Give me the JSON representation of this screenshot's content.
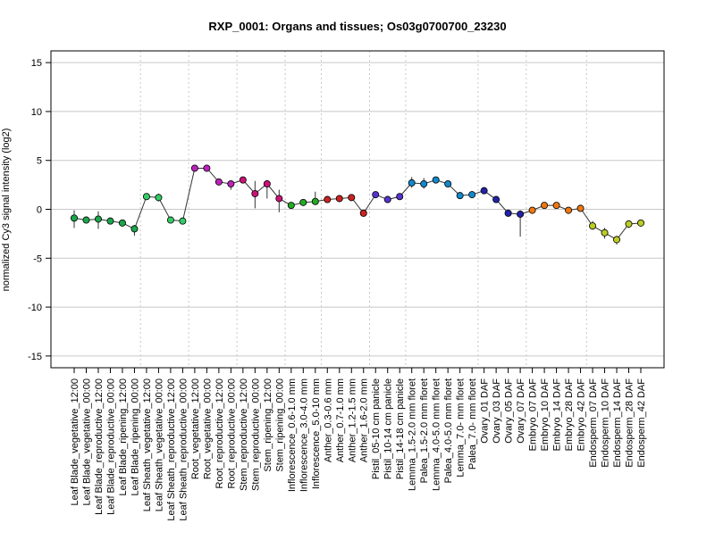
{
  "chart_data": {
    "type": "line",
    "title": "RXP_0001: Organs and tissues; Os03g0700700_23230",
    "xlabel": "",
    "ylabel": "normalized Cy3 signal intensity (log2)",
    "ylim": [
      -16.2,
      16.2
    ],
    "yticks": [
      -15,
      -10,
      -5,
      0,
      5,
      10,
      15
    ],
    "ytick_labels": [
      "-15",
      "-10",
      "-5",
      "0",
      "5",
      "10",
      "15"
    ],
    "grid": {
      "horizontal": true,
      "group_separators": "dotted"
    },
    "categories": [
      "Leaf Blade_vegetative_12:00",
      "Leaf Blade_vegetative_00:00",
      "Leaf Blade_reproductive_12:00",
      "Leaf Blade_reproductive_00:00",
      "Leaf Blade_ripening_12:00",
      "Leaf Blade_ripening_00:00",
      "Leaf Sheath_vegetative_12:00",
      "Leaf Sheath_vegetative_00:00",
      "Leaf Sheath_reproductive_12:00",
      "Leaf Sheath_reproductive_00:00",
      "Root_vegetative_12:00",
      "Root_vegetative_00:00",
      "Root_reproductive_12:00",
      "Root_reproductive_00:00",
      "Stem_reproductive_12:00",
      "Stem_reproductive_00:00",
      "Stem_ripening_12:00",
      "Stem_ripening_00:00",
      "Inflorescence_0.6-1.0 mm",
      "Inflorescence_3.0-4.0 mm",
      "Inflorescence_5.0-10 mm",
      "Anther_0.3-0.6 mm",
      "Anther_0.7-1.0 mm",
      "Anther_1.2-1.5 mm",
      "Anther_1.6-2.0 mm",
      "Pistil_05-10 cm panicle",
      "Pistil_10-14 cm panicle",
      "Pistil_14-18 cm panicle",
      "Lemma_1.5-2.0 mm floret",
      "Palea_1.5-2.0 mm floret",
      "Lemma_4.0-5.0 mm floret",
      "Palea_4.0-5.0 mm floret",
      "Lemma_7.0- mm floret",
      "Palea_7.0- mm floret",
      "Ovary_01 DAF",
      "Ovary_03 DAF",
      "Ovary_05 DAF",
      "Ovary_07 DAF",
      "Embryo_07 DAF",
      "Embryo_10 DAF",
      "Embryo_14 DAF",
      "Embryo_28 DAF",
      "Embryo_42 DAF",
      "Endosperm_07 DAF",
      "Endosperm_10 DAF",
      "Endosperm_14 DAF",
      "Endosperm_28 DAF",
      "Endosperm_42 DAF"
    ],
    "values": [
      -0.9,
      -1.1,
      -1.0,
      -1.2,
      -1.4,
      -2.0,
      1.3,
      1.2,
      -1.1,
      -1.2,
      4.2,
      4.2,
      2.8,
      2.6,
      3.0,
      1.6,
      2.6,
      1.1,
      0.4,
      0.7,
      0.8,
      1.0,
      1.1,
      1.2,
      -0.4,
      1.5,
      1.0,
      1.3,
      2.7,
      2.6,
      3.0,
      2.6,
      1.4,
      1.5,
      1.9,
      1.0,
      -0.4,
      -0.5,
      -0.1,
      0.4,
      0.4,
      -0.1,
      0.1,
      -1.7,
      -2.4,
      -3.1,
      -1.5,
      -1.4
    ],
    "error_low": [
      -1.0,
      0,
      -1.0,
      0,
      0,
      -0.7,
      0,
      -0.4,
      0,
      0,
      0,
      0,
      0,
      -0.6,
      0,
      -1.5,
      -1.5,
      -1.4,
      0,
      0,
      0,
      0,
      0,
      -0.3,
      0,
      0,
      0,
      0,
      -0.5,
      -0.5,
      0,
      0,
      0,
      0,
      0,
      0,
      0,
      -2.3,
      0,
      0,
      0,
      0,
      0,
      -0.4,
      -0.6,
      -0.5,
      -0.4,
      0
    ],
    "error_high": [
      0.8,
      0,
      0.8,
      0,
      0,
      0.4,
      0,
      0.4,
      0,
      0,
      0,
      0,
      0,
      0.3,
      0,
      1.3,
      0.4,
      0.9,
      0,
      0,
      1.0,
      0,
      0,
      0.3,
      0,
      0,
      0,
      0,
      0.6,
      0.6,
      0,
      0,
      0,
      0,
      0,
      0,
      0,
      0.4,
      0,
      0,
      0,
      0,
      0,
      0.5,
      0.5,
      0.4,
      0.3,
      0
    ],
    "group_breaks_after": [
      5,
      9,
      13,
      17,
      20,
      24,
      27,
      33,
      37,
      42
    ],
    "colors": [
      "#1aa64b",
      "#1aa64b",
      "#1aa64b",
      "#1aa64b",
      "#1aa64b",
      "#1aa64b",
      "#33cc66",
      "#33cc66",
      "#33cc66",
      "#33cc66",
      "#bb22bb",
      "#bb22bb",
      "#bb22bb",
      "#bb22bb",
      "#cc1177",
      "#cc1177",
      "#cc1177",
      "#cc1177",
      "#22aa22",
      "#22aa22",
      "#22aa22",
      "#cc2222",
      "#cc2222",
      "#cc2222",
      "#cc2222",
      "#5533cc",
      "#5533cc",
      "#5533cc",
      "#1188cc",
      "#1188cc",
      "#1188cc",
      "#1188cc",
      "#1188cc",
      "#1188cc",
      "#2222aa",
      "#2222aa",
      "#2222aa",
      "#2222aa",
      "#ee7711",
      "#ee7711",
      "#ee7711",
      "#ee7711",
      "#ee7711",
      "#bbcc22",
      "#bbcc22",
      "#bbcc22",
      "#bbcc22",
      "#bbcc22"
    ]
  }
}
